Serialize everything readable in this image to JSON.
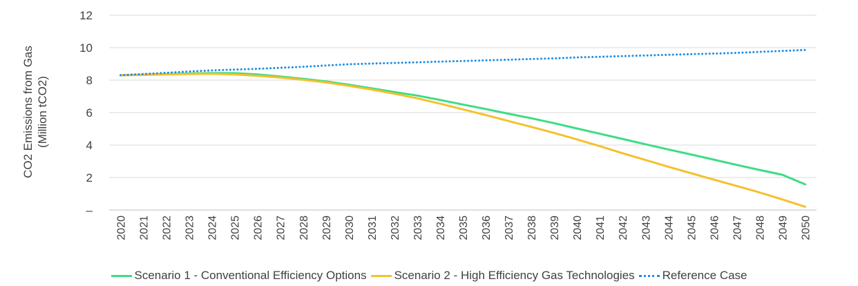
{
  "chart_data": {
    "type": "line",
    "title": "",
    "xlabel": "",
    "ylabel_lines": [
      "CO2 Emissions from Gas",
      "(Million tCO2)"
    ],
    "ylim": [
      0,
      12
    ],
    "yticks": [
      {
        "value": 0,
        "label": "–"
      },
      {
        "value": 2,
        "label": "2"
      },
      {
        "value": 4,
        "label": "4"
      },
      {
        "value": 6,
        "label": "6"
      },
      {
        "value": 8,
        "label": "8"
      },
      {
        "value": 10,
        "label": "10"
      },
      {
        "value": 12,
        "label": "12"
      }
    ],
    "x": [
      "2020",
      "2021",
      "2022",
      "2023",
      "2024",
      "2025",
      "2026",
      "2027",
      "2028",
      "2029",
      "2030",
      "2031",
      "2032",
      "2033",
      "2034",
      "2035",
      "2036",
      "2037",
      "2038",
      "2039",
      "2040",
      "2041",
      "2042",
      "2043",
      "2044",
      "2045",
      "2046",
      "2047",
      "2048",
      "2049",
      "2050"
    ],
    "grid": "horizontal",
    "legend_position": "bottom",
    "series": [
      {
        "name": "Scenario 1 - Conventional Efficiency Options",
        "color": "#3ddc84",
        "style": "solid",
        "values": [
          8.3,
          8.33,
          8.37,
          8.41,
          8.44,
          8.43,
          8.35,
          8.22,
          8.08,
          7.92,
          7.72,
          7.5,
          7.27,
          7.05,
          6.78,
          6.5,
          6.22,
          5.93,
          5.65,
          5.35,
          5.02,
          4.7,
          4.38,
          4.05,
          3.73,
          3.42,
          3.1,
          2.78,
          2.47,
          2.17,
          1.58
        ]
      },
      {
        "name": "Scenario 2 - High Efficiency Gas Technologies",
        "color": "#f5c02c",
        "style": "solid",
        "values": [
          8.3,
          8.32,
          8.35,
          8.38,
          8.39,
          8.35,
          8.27,
          8.16,
          8.02,
          7.86,
          7.65,
          7.42,
          7.16,
          6.88,
          6.55,
          6.2,
          5.85,
          5.48,
          5.12,
          4.75,
          4.35,
          3.93,
          3.5,
          3.08,
          2.67,
          2.27,
          1.87,
          1.48,
          1.08,
          0.65,
          0.2
        ]
      },
      {
        "name": "Reference Case",
        "color": "#1f8fe5",
        "style": "dotted",
        "values": [
          8.3,
          8.38,
          8.45,
          8.53,
          8.6,
          8.65,
          8.7,
          8.76,
          8.82,
          8.9,
          8.98,
          9.02,
          9.06,
          9.1,
          9.14,
          9.18,
          9.22,
          9.26,
          9.3,
          9.34,
          9.4,
          9.44,
          9.48,
          9.52,
          9.56,
          9.6,
          9.64,
          9.68,
          9.74,
          9.8,
          9.86
        ]
      }
    ]
  }
}
